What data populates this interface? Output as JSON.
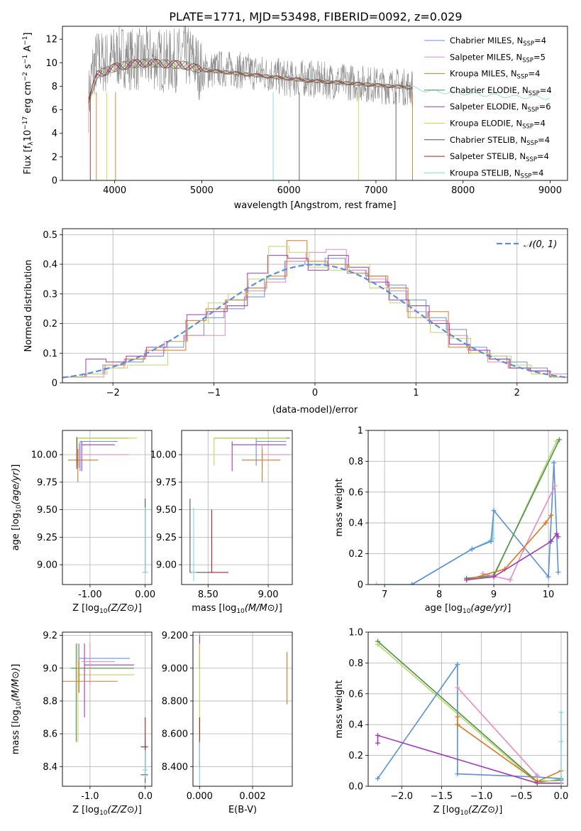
{
  "figure_title": "PLATE=1771, MJD=53498, FIBERID=0092, z=0.029",
  "chart_data": [
    {
      "id": "spectrum",
      "type": "line",
      "title": "PLATE=1771, MJD=53498, FIBERID=0092, z=0.029",
      "xlabel": "wavelength [Angstrom, rest frame]",
      "ylabel": "Flux [f_λ 10^-17 erg cm^-2 s^-1 A^-1]",
      "xlim": [
        3400,
        9200
      ],
      "ylim": [
        0,
        13.1
      ],
      "xticks": [
        4000,
        5000,
        6000,
        7000,
        8000,
        9000
      ],
      "yticks": [
        0,
        2,
        4,
        6,
        8,
        10,
        12
      ],
      "grid": false,
      "legend_position": "top-right",
      "data_x": [
        3700,
        3750,
        3800,
        3900,
        4000,
        4100,
        4200,
        4300,
        4400,
        4500,
        4600,
        4700,
        4800,
        4900,
        5000,
        5200,
        5400,
        5600,
        5800,
        6000,
        6200,
        6400,
        6600,
        6800,
        7000,
        7200,
        7400
      ],
      "data_y": [
        6.8,
        9.5,
        10.2,
        10.0,
        10.5,
        10.6,
        10.3,
        10.2,
        10.4,
        10.3,
        10.1,
        10.2,
        10.6,
        10.3,
        9.2,
        9.5,
        9.4,
        9.2,
        9.0,
        8.6,
        8.7,
        8.5,
        8.4,
        8.3,
        8.1,
        8.0,
        7.9
      ],
      "model_x": [
        3700,
        3800,
        3900,
        4000,
        4200,
        4400,
        4600,
        4800,
        5000,
        5400,
        5800,
        6200,
        6600,
        7000,
        7400,
        7600,
        7800,
        8000,
        8200,
        8400,
        8600,
        8800,
        9000
      ],
      "model_y": [
        6.8,
        9.0,
        9.3,
        9.6,
        9.9,
        10.0,
        9.9,
        9.8,
        9.4,
        9.1,
        8.8,
        8.5,
        8.3,
        8.1,
        7.9,
        7.6,
        7.5,
        7.4,
        7.3,
        7.2,
        7.1,
        7.1,
        7.0
      ],
      "series": [
        {
          "name": "Chabrier MILES, N_SSP=4",
          "label_main": "Chabrier MILES, N",
          "label_sub": "SSP",
          "label_tail": "=4",
          "color": "#6a8fd6"
        },
        {
          "name": "Salpeter MILES, N_SSP=5",
          "label_main": "Salpeter MILES, N",
          "label_sub": "SSP",
          "label_tail": "=5",
          "color": "#e88bbf"
        },
        {
          "name": "Kroupa MILES, N_SSP=4",
          "label_main": "Kroupa MILES, N",
          "label_sub": "SSP",
          "label_tail": "=4",
          "color": "#d9791e"
        },
        {
          "name": "Chabrier ELODIE, N_SSP=4",
          "label_main": "Chabrier ELODIE, N",
          "label_sub": "SSP",
          "label_tail": "=4",
          "color": "#4f8f4f"
        },
        {
          "name": "Salpeter ELODIE, N_SSP=6",
          "label_main": "Salpeter ELODIE, N",
          "label_sub": "SSP",
          "label_tail": "=6",
          "color": "#a23ab8"
        },
        {
          "name": "Kroupa ELODIE, N_SSP=4",
          "label_main": "Kroupa ELODIE, N",
          "label_sub": "SSP",
          "label_tail": "=4",
          "color": "#d6d63a"
        },
        {
          "name": "Chabrier STELIB, N_SSP=4",
          "label_main": "Chabrier STELIB, N",
          "label_sub": "SSP",
          "label_tail": "=4",
          "color": "#555555"
        },
        {
          "name": "Salpeter STELIB, N_SSP=4",
          "label_main": "Salpeter STELIB, N",
          "label_sub": "SSP",
          "label_tail": "=4",
          "color": "#b02020"
        },
        {
          "name": "Kroupa STELIB, N_SSP=4",
          "label_main": "Kroupa STELIB, N",
          "label_sub": "SSP",
          "label_tail": "=4",
          "color": "#7fd6dc"
        }
      ]
    },
    {
      "id": "residuals",
      "type": "line",
      "xlabel": "(data-model)/error",
      "ylabel": "Normed distribution",
      "xlim": [
        -2.5,
        2.5
      ],
      "ylim": [
        0,
        0.52
      ],
      "xticks": [
        -2,
        -1,
        0,
        1,
        2
      ],
      "yticks": [
        0.0,
        0.1,
        0.2,
        0.3,
        0.4,
        0.5
      ],
      "grid": true,
      "legend_position": "top-right",
      "legend_label": "𝒩(0, 1)",
      "bin_edges": [
        -2.5,
        -2.3,
        -2.1,
        -1.9,
        -1.7,
        -1.5,
        -1.3,
        -1.1,
        -0.9,
        -0.7,
        -0.5,
        -0.3,
        -0.1,
        0.1,
        0.3,
        0.5,
        0.7,
        0.9,
        1.1,
        1.3,
        1.5,
        1.7,
        1.9,
        2.1,
        2.3,
        2.5
      ],
      "histograms": [
        {
          "color": "#6a8fd6",
          "values": [
            0.02,
            0.03,
            0.06,
            0.07,
            0.09,
            0.12,
            0.16,
            0.22,
            0.25,
            0.29,
            0.35,
            0.41,
            0.4,
            0.42,
            0.38,
            0.36,
            0.33,
            0.28,
            0.22,
            0.18,
            0.12,
            0.09,
            0.07,
            0.05,
            0.03
          ]
        },
        {
          "color": "#e88bbf",
          "values": [
            0.02,
            0.02,
            0.05,
            0.08,
            0.1,
            0.14,
            0.16,
            0.16,
            0.28,
            0.31,
            0.34,
            0.41,
            0.44,
            0.45,
            0.38,
            0.35,
            0.31,
            0.24,
            0.21,
            0.16,
            0.11,
            0.07,
            0.05,
            0.04,
            0.03
          ]
        },
        {
          "color": "#d9791e",
          "values": [
            0.02,
            0.03,
            0.06,
            0.08,
            0.11,
            0.11,
            0.21,
            0.25,
            0.28,
            0.32,
            0.36,
            0.48,
            0.41,
            0.4,
            0.37,
            0.36,
            0.32,
            0.22,
            0.24,
            0.12,
            0.1,
            0.08,
            0.05,
            0.04,
            0.02
          ]
        },
        {
          "color": "#a23ab8",
          "values": [
            0.02,
            0.08,
            0.07,
            0.09,
            0.12,
            0.14,
            0.23,
            0.24,
            0.26,
            0.37,
            0.43,
            0.42,
            0.38,
            0.43,
            0.39,
            0.34,
            0.28,
            0.26,
            0.2,
            0.13,
            0.11,
            0.08,
            0.05,
            0.04,
            0.02
          ]
        },
        {
          "color": "#b8d96a",
          "values": [
            0.02,
            0.03,
            0.05,
            0.06,
            0.06,
            0.14,
            0.2,
            0.27,
            0.3,
            0.35,
            0.46,
            0.44,
            0.39,
            0.38,
            0.4,
            0.32,
            0.27,
            0.22,
            0.17,
            0.15,
            0.1,
            0.09,
            0.06,
            0.03,
            0.02
          ]
        }
      ],
      "gaussian": {
        "mean": 0,
        "sigma": 1,
        "color": "#5b8fd6"
      }
    },
    {
      "id": "z-vs-age",
      "type": "scatter",
      "xlabel": "Z [log10(Z/Z⊙)]",
      "ylabel": "age [log10(age/yr)]",
      "xlim": [
        -1.5,
        0.12
      ],
      "ylim": [
        8.82,
        10.22
      ],
      "xticks": [
        -1,
        0
      ],
      "yticks": [
        9.0,
        9.25,
        9.5,
        9.75,
        10.0
      ],
      "grid": true,
      "points": [
        {
          "x": -1.23,
          "y": 10.15,
          "xlo": -1.23,
          "xhi": -0.3,
          "ylo": 10.15,
          "yhi": 10.15,
          "color": "#4f8f4f"
        },
        {
          "x": -1.23,
          "y": 10.15,
          "xlo": -1.23,
          "xhi": -0.15,
          "ylo": 9.9,
          "yhi": 10.15,
          "color": "#c8d44a"
        },
        {
          "x": -1.18,
          "y": 10.12,
          "xlo": -1.18,
          "xhi": -0.5,
          "ylo": 9.85,
          "yhi": 10.12,
          "color": "#6a8fd6"
        },
        {
          "x": -1.15,
          "y": 10.09,
          "xlo": -1.15,
          "xhi": -0.55,
          "ylo": 9.85,
          "yhi": 10.12,
          "color": "#a23ab8"
        },
        {
          "x": -1.2,
          "y": 10.0,
          "xlo": -1.2,
          "xhi": -0.3,
          "ylo": 9.88,
          "yhi": 10.1,
          "color": "#e88bbf"
        },
        {
          "x": -1.22,
          "y": 9.95,
          "xlo": -1.4,
          "xhi": -0.85,
          "ylo": 9.75,
          "yhi": 10.05,
          "color": "#d9791e"
        },
        {
          "x": -1.24,
          "y": 10.05,
          "xlo": -1.24,
          "xhi": -1.24,
          "ylo": 9.87,
          "yhi": 10.16,
          "color": "#555555"
        },
        {
          "x": 0.0,
          "y": 8.93,
          "xlo": -0.05,
          "xhi": 0.05,
          "ylo": 8.93,
          "yhi": 9.6,
          "color": "#555555"
        },
        {
          "x": 0.0,
          "y": 8.93,
          "xlo": -0.05,
          "xhi": 0.05,
          "ylo": 8.93,
          "yhi": 9.52,
          "color": "#7fd6dc"
        }
      ]
    },
    {
      "id": "mass-vs-age",
      "type": "scatter",
      "xlabel": "mass [log10(M/M⊙)]",
      "ylabel": "",
      "xlim": [
        8.28,
        9.2
      ],
      "ylim": [
        8.82,
        10.22
      ],
      "xticks": [
        8.5,
        9.0
      ],
      "yticks": [
        9.0,
        9.25,
        9.5,
        9.75,
        10.0
      ],
      "grid": true,
      "points": [
        {
          "x": 8.55,
          "y": 10.15,
          "xlo": 8.55,
          "xhi": 9.18,
          "ylo": 10.15,
          "yhi": 10.15,
          "color": "#4f8f4f"
        },
        {
          "x": 8.55,
          "y": 10.15,
          "xlo": 8.55,
          "xhi": 9.15,
          "ylo": 9.9,
          "yhi": 10.15,
          "color": "#c8d44a"
        },
        {
          "x": 8.9,
          "y": 10.12,
          "xlo": 8.9,
          "xhi": 9.15,
          "ylo": 9.9,
          "yhi": 10.15,
          "color": "#6a8fd6"
        },
        {
          "x": 8.7,
          "y": 10.09,
          "xlo": 8.7,
          "xhi": 9.15,
          "ylo": 9.85,
          "yhi": 10.12,
          "color": "#a23ab8"
        },
        {
          "x": 8.95,
          "y": 10.0,
          "xlo": 8.95,
          "xhi": 9.18,
          "ylo": 9.88,
          "yhi": 10.1,
          "color": "#e88bbf"
        },
        {
          "x": 8.95,
          "y": 9.95,
          "xlo": 8.78,
          "xhi": 9.1,
          "ylo": 9.75,
          "yhi": 10.05,
          "color": "#d9791e"
        },
        {
          "x": 8.35,
          "y": 8.93,
          "xlo": 8.35,
          "xhi": 8.5,
          "ylo": 8.93,
          "yhi": 9.6,
          "color": "#555555"
        },
        {
          "x": 8.38,
          "y": 8.93,
          "xlo": 8.36,
          "xhi": 8.4,
          "ylo": 8.85,
          "yhi": 9.52,
          "color": "#7fd6dc"
        },
        {
          "x": 8.53,
          "y": 8.93,
          "xlo": 8.5,
          "xhi": 8.67,
          "ylo": 8.93,
          "yhi": 9.5,
          "color": "#b02020"
        }
      ]
    },
    {
      "id": "age-weights",
      "type": "line",
      "xlabel": "age [log10(age/yr)]",
      "ylabel": "mass weight",
      "xlim": [
        6.7,
        10.35
      ],
      "ylim": [
        0,
        1.0
      ],
      "xticks": [
        7,
        8,
        9,
        10
      ],
      "yticks": [
        0.0,
        0.2,
        0.4,
        0.6,
        0.8,
        1.0
      ],
      "grid": true,
      "series": [
        {
          "color": "#8fd6d6",
          "x": [
            6.85,
            7.5,
            8.6,
            8.95,
            9.0,
            8.98
          ],
          "y": [
            0.0,
            0.0,
            0.23,
            0.29,
            0.48,
            0.3
          ]
        },
        {
          "color": "#5b8fd6",
          "x": [
            7.5,
            8.6,
            8.95,
            9.0,
            10.0,
            10.1,
            10.18
          ],
          "y": [
            0.0,
            0.23,
            0.28,
            0.48,
            0.05,
            0.79,
            0.08
          ]
        },
        {
          "color": "#b8d96a",
          "x": [
            8.5,
            9.0,
            10.15
          ],
          "y": [
            0.04,
            0.05,
            0.93
          ]
        },
        {
          "color": "#4f8f4f",
          "x": [
            8.5,
            9.0,
            10.2
          ],
          "y": [
            0.04,
            0.06,
            0.94
          ]
        },
        {
          "color": "#e88bbf",
          "x": [
            8.8,
            9.3,
            9.55,
            10.12
          ],
          "y": [
            0.07,
            0.03,
            0.23,
            0.64
          ]
        },
        {
          "color": "#d9791e",
          "x": [
            8.5,
            9.2,
            9.95,
            10.05
          ],
          "y": [
            0.03,
            0.1,
            0.4,
            0.45
          ]
        },
        {
          "color": "#a23ab8",
          "x": [
            8.5,
            9.0,
            10.05,
            10.15,
            10.18
          ],
          "y": [
            0.03,
            0.05,
            0.28,
            0.33,
            0.31
          ]
        }
      ]
    },
    {
      "id": "z-vs-mass",
      "type": "scatter",
      "xlabel": "Z [log10(Z/Z⊙)]",
      "ylabel": "mass [log10(M/M⊙)]",
      "xlim": [
        -1.5,
        0.12
      ],
      "ylim": [
        8.28,
        9.22
      ],
      "xticks": [
        -1,
        0
      ],
      "yticks": [
        8.4,
        8.6,
        8.8,
        9.0,
        9.2
      ],
      "grid": true,
      "points": [
        {
          "x": -1.25,
          "y": 9.0,
          "xlo": -1.35,
          "xhi": -0.2,
          "ylo": 8.55,
          "yhi": 9.15,
          "color": "#4f8f4f"
        },
        {
          "x": -1.22,
          "y": 8.96,
          "xlo": -1.22,
          "xhi": -0.2,
          "ylo": 8.55,
          "yhi": 9.15,
          "color": "#c8d44a"
        },
        {
          "x": -1.2,
          "y": 9.06,
          "xlo": -1.2,
          "xhi": -0.28,
          "ylo": 8.85,
          "yhi": 9.15,
          "color": "#6a8fd6"
        },
        {
          "x": -1.1,
          "y": 9.02,
          "xlo": -1.1,
          "xhi": -0.2,
          "ylo": 8.7,
          "yhi": 9.15,
          "color": "#a23ab8"
        },
        {
          "x": -1.0,
          "y": 9.04,
          "xlo": -1.15,
          "xhi": -0.55,
          "ylo": 8.9,
          "yhi": 9.16,
          "color": "#e88bbf"
        },
        {
          "x": -1.2,
          "y": 8.92,
          "xlo": -1.5,
          "xhi": -0.5,
          "ylo": 8.85,
          "yhi": 9.05,
          "color": "#d9791e"
        },
        {
          "x": 0.0,
          "y": 8.52,
          "xlo": -0.08,
          "xhi": 0.05,
          "ylo": 8.4,
          "yhi": 8.7,
          "color": "#b02020"
        },
        {
          "x": 0.0,
          "y": 8.35,
          "xlo": -0.08,
          "xhi": 0.05,
          "ylo": 8.3,
          "yhi": 8.55,
          "color": "#555555"
        },
        {
          "x": 0.0,
          "y": 8.38,
          "xlo": -0.05,
          "xhi": 0.05,
          "ylo": 8.33,
          "yhi": 8.5,
          "color": "#7fd6dc"
        }
      ]
    },
    {
      "id": "ebv-vs-mass",
      "type": "scatter",
      "xlabel": "E(B-V)",
      "ylabel": "",
      "xlim": [
        -0.00025,
        0.0035
      ],
      "ylim": [
        8.28,
        9.22
      ],
      "xticks": [
        0.0,
        0.002
      ],
      "yticks": [
        8.4,
        8.6,
        8.8,
        9.0,
        9.2
      ],
      "grid": true,
      "points": [
        {
          "x": 0.0,
          "y": 9.1,
          "xlo": 0.0,
          "xhi": 0.0,
          "ylo": 9.0,
          "yhi": 9.2,
          "color": "#a23ab8"
        },
        {
          "x": 0.0,
          "y": 8.8,
          "xlo": 0.0,
          "xhi": 0.0,
          "ylo": 8.55,
          "yhi": 9.15,
          "color": "#c8d44a"
        },
        {
          "x": 0.0,
          "y": 8.52,
          "xlo": 0.0,
          "xhi": 0.0,
          "ylo": 8.4,
          "yhi": 8.7,
          "color": "#b02020"
        },
        {
          "x": 0.0,
          "y": 8.4,
          "xlo": 0.0,
          "xhi": 0.0,
          "ylo": 8.3,
          "yhi": 8.55,
          "color": "#7fd6dc"
        },
        {
          "x": 0.0033,
          "y": 8.95,
          "xlo": 0.0033,
          "xhi": 0.0033,
          "ylo": 8.78,
          "yhi": 9.1,
          "color": "#d9791e"
        }
      ]
    },
    {
      "id": "z-weights",
      "type": "line",
      "xlabel": "Z [log10(Z/Z⊙)]",
      "ylabel": "mass weight",
      "xlim": [
        -2.42,
        0.08
      ],
      "ylim": [
        0,
        1.0
      ],
      "xticks": [
        -2.0,
        -1.5,
        -1.0,
        -0.5,
        0.0
      ],
      "yticks": [
        0.0,
        0.2,
        0.4,
        0.6,
        0.8,
        1.0
      ],
      "grid": true,
      "series": [
        {
          "color": "#4f8f4f",
          "x": [
            -2.3,
            -0.3,
            0.0
          ],
          "y": [
            0.94,
            0.03,
            0.04
          ]
        },
        {
          "color": "#b8d96a",
          "x": [
            -2.3,
            -0.3,
            0.0
          ],
          "y": [
            0.92,
            0.02,
            0.05
          ]
        },
        {
          "color": "#5b8fd6",
          "x": [
            -2.3,
            -1.3,
            -1.3,
            -0.3,
            0.0
          ],
          "y": [
            0.05,
            0.79,
            0.08,
            0.06,
            0.05
          ]
        },
        {
          "color": "#e88bbf",
          "x": [
            -1.3,
            -0.3,
            -0.3
          ],
          "y": [
            0.64,
            0.07,
            0.03
          ]
        },
        {
          "color": "#d9791e",
          "x": [
            -1.3,
            -1.3,
            -0.3,
            0.0
          ],
          "y": [
            0.45,
            0.4,
            0.03,
            0.1
          ]
        },
        {
          "color": "#a23ab8",
          "x": [
            -2.3,
            -2.3,
            -0.3,
            0.0
          ],
          "y": [
            0.28,
            0.33,
            0.02,
            0.02
          ]
        },
        {
          "color": "#8fd6d6",
          "x": [
            0.0,
            0.0,
            0.0
          ],
          "y": [
            0.0,
            0.48,
            0.29
          ]
        }
      ]
    }
  ]
}
